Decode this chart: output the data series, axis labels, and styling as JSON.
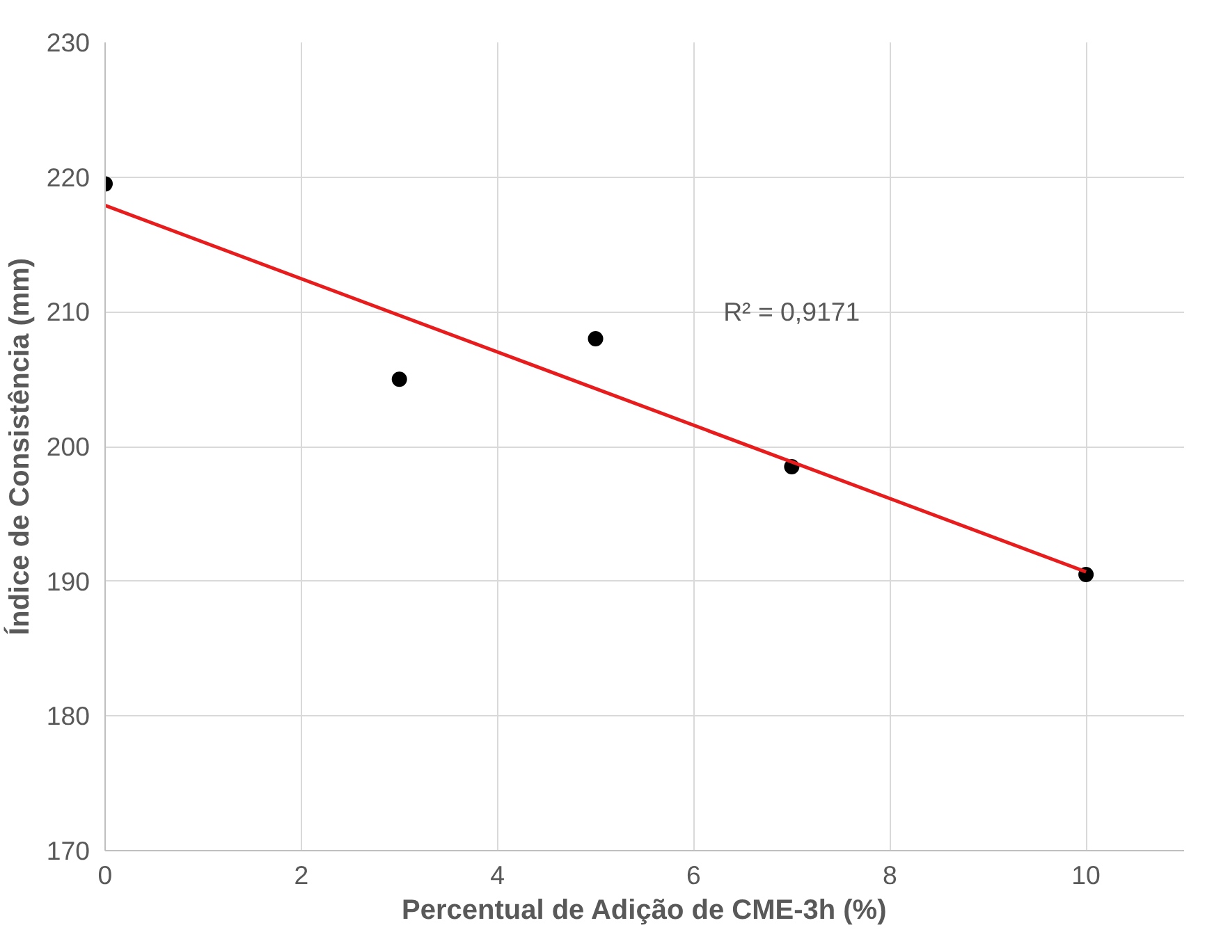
{
  "chart_data": {
    "type": "scatter",
    "xlabel": "Percentual de Adição de CME-3h (%)",
    "ylabel": "Índice de Consistência (mm)",
    "series": [
      {
        "color": "#000000",
        "x": [
          0,
          3,
          5,
          7,
          10
        ],
        "values": [
          219.5,
          205,
          208,
          198.5,
          190.5
        ],
        "marker": "circle"
      },
      {
        "type": "line",
        "color": "#e81c1c",
        "x": [
          0,
          10
        ],
        "values": [
          217.9,
          190.7
        ],
        "line_style": "solid"
      }
    ],
    "annotations": [
      "R² = 0,9171"
    ],
    "xlim": [
      0,
      11
    ],
    "xticks": [
      0,
      2,
      4,
      6,
      8,
      10
    ],
    "ylim": [
      170,
      230
    ],
    "yticks": [
      170,
      180,
      190,
      200,
      210,
      220,
      230
    ],
    "grid": true
  }
}
